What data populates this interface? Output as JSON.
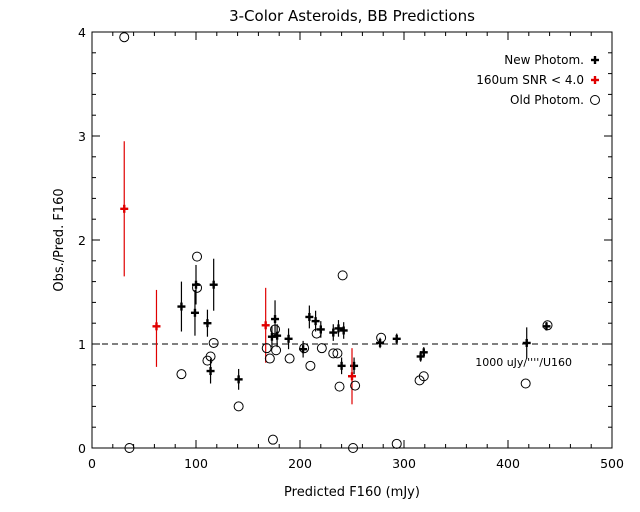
{
  "chart_data": {
    "type": "scatter",
    "title": "3-Color Asteroids, BB Predictions",
    "xlabel": "Predicted F160 (mJy)",
    "ylabel": "Obs./Pred. F160",
    "xlim": [
      0,
      500
    ],
    "ylim": [
      0,
      4
    ],
    "xticks": [
      0,
      100,
      200,
      300,
      400,
      500
    ],
    "yticks": [
      0,
      1,
      2,
      3,
      4
    ],
    "reference_line": {
      "y": 1.0,
      "style": "dashed"
    },
    "annotation": "1000 uJy/''''/U160",
    "legend_position": "top-right",
    "colors": {
      "new": "#000000",
      "low_snr": "#e00000",
      "old": "#000000"
    },
    "series": [
      {
        "name": "New Photom.",
        "marker": "plus-errorbar",
        "color": "#000000",
        "points": [
          {
            "x": 86,
            "y": 1.36,
            "lo": 1.12,
            "hi": 1.6
          },
          {
            "x": 99,
            "y": 1.3,
            "lo": 1.08,
            "hi": 1.52
          },
          {
            "x": 100,
            "y": 1.57,
            "lo": 1.38,
            "hi": 1.76
          },
          {
            "x": 111,
            "y": 1.2,
            "lo": 1.07,
            "hi": 1.33
          },
          {
            "x": 114,
            "y": 0.74,
            "lo": 0.62,
            "hi": 0.86
          },
          {
            "x": 117,
            "y": 1.57,
            "lo": 1.32,
            "hi": 1.82
          },
          {
            "x": 141,
            "y": 0.66,
            "lo": 0.56,
            "hi": 0.76
          },
          {
            "x": 173,
            "y": 1.07,
            "lo": 0.97,
            "hi": 1.17
          },
          {
            "x": 176,
            "y": 1.24,
            "lo": 1.06,
            "hi": 1.42
          },
          {
            "x": 178,
            "y": 1.08,
            "lo": 0.97,
            "hi": 1.19
          },
          {
            "x": 189,
            "y": 1.05,
            "lo": 0.95,
            "hi": 1.15
          },
          {
            "x": 203,
            "y": 0.95,
            "lo": 0.87,
            "hi": 1.03
          },
          {
            "x": 209,
            "y": 1.26,
            "lo": 1.15,
            "hi": 1.37
          },
          {
            "x": 215,
            "y": 1.22,
            "lo": 1.12,
            "hi": 1.32
          },
          {
            "x": 220,
            "y": 1.14,
            "lo": 1.06,
            "hi": 1.22
          },
          {
            "x": 232,
            "y": 1.11,
            "lo": 1.03,
            "hi": 1.19
          },
          {
            "x": 237,
            "y": 1.15,
            "lo": 1.07,
            "hi": 1.23
          },
          {
            "x": 240,
            "y": 0.79,
            "lo": 0.71,
            "hi": 0.87
          },
          {
            "x": 242,
            "y": 1.13,
            "lo": 1.05,
            "hi": 1.21
          },
          {
            "x": 252,
            "y": 0.79,
            "lo": 0.71,
            "hi": 0.87
          },
          {
            "x": 277,
            "y": 1.01,
            "lo": 0.96,
            "hi": 1.06
          },
          {
            "x": 293,
            "y": 1.05,
            "lo": 1.0,
            "hi": 1.1
          },
          {
            "x": 316,
            "y": 0.88,
            "lo": 0.83,
            "hi": 0.93
          },
          {
            "x": 319,
            "y": 0.92,
            "lo": 0.87,
            "hi": 0.97
          },
          {
            "x": 418,
            "y": 1.01,
            "lo": 0.86,
            "hi": 1.16
          },
          {
            "x": 437,
            "y": 1.17,
            "lo": 1.13,
            "hi": 1.21
          }
        ]
      },
      {
        "name": "160um SNR < 4.0",
        "marker": "plus-errorbar",
        "color": "#e00000",
        "points": [
          {
            "x": 31,
            "y": 2.3,
            "lo": 1.65,
            "hi": 2.95
          },
          {
            "x": 62,
            "y": 1.17,
            "lo": 0.78,
            "hi": 1.52
          },
          {
            "x": 167,
            "y": 1.18,
            "lo": 0.82,
            "hi": 1.54
          },
          {
            "x": 250,
            "y": 0.69,
            "lo": 0.42,
            "hi": 0.96
          }
        ]
      },
      {
        "name": "Old Photom.",
        "marker": "open-circle",
        "color": "#000000",
        "points": [
          {
            "x": 31,
            "y": 3.95
          },
          {
            "x": 36,
            "y": 0.0
          },
          {
            "x": 86,
            "y": 0.71
          },
          {
            "x": 101,
            "y": 1.84
          },
          {
            "x": 101,
            "y": 1.54
          },
          {
            "x": 111,
            "y": 0.84
          },
          {
            "x": 114,
            "y": 0.88
          },
          {
            "x": 117,
            "y": 1.01
          },
          {
            "x": 141,
            "y": 0.4
          },
          {
            "x": 168,
            "y": 0.96
          },
          {
            "x": 171,
            "y": 0.86
          },
          {
            "x": 174,
            "y": 0.08
          },
          {
            "x": 177,
            "y": 0.94
          },
          {
            "x": 176,
            "y": 1.14
          },
          {
            "x": 190,
            "y": 0.86
          },
          {
            "x": 204,
            "y": 0.96
          },
          {
            "x": 210,
            "y": 0.79
          },
          {
            "x": 216,
            "y": 1.1
          },
          {
            "x": 221,
            "y": 0.96
          },
          {
            "x": 232,
            "y": 0.91
          },
          {
            "x": 236,
            "y": 0.91
          },
          {
            "x": 238,
            "y": 0.59
          },
          {
            "x": 241,
            "y": 1.66
          },
          {
            "x": 251,
            "y": 0.0
          },
          {
            "x": 253,
            "y": 0.6
          },
          {
            "x": 278,
            "y": 1.06
          },
          {
            "x": 293,
            "y": 0.04
          },
          {
            "x": 315,
            "y": 0.65
          },
          {
            "x": 319,
            "y": 0.69
          },
          {
            "x": 417,
            "y": 0.62
          },
          {
            "x": 438,
            "y": 1.18
          }
        ]
      }
    ]
  }
}
